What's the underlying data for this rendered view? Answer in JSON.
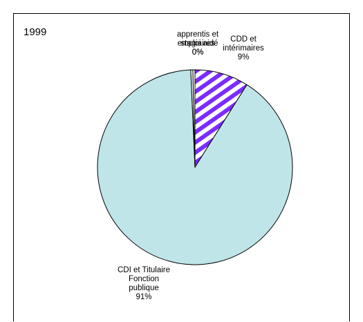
{
  "chart_data": {
    "type": "pie",
    "title": "1999",
    "slices": [
      {
        "key": "cdd",
        "label_lines": [
          "CDD et",
          "intérimaires"
        ],
        "value_label": "9%",
        "value": 9,
        "fill": "#ffffff",
        "hatch": "#7b2cff"
      },
      {
        "key": "cdi",
        "label_lines": [
          "CDI et Titulaire",
          "Fonction",
          "publique"
        ],
        "value_label": "91%",
        "value": 91,
        "fill": "#bfe5e8"
      },
      {
        "key": "apprentis",
        "label_lines": [
          "apprentis et",
          "stagiaires"
        ],
        "value_label": "0%",
        "value": 0.35,
        "fill": "#ffffff"
      },
      {
        "key": "emploi_aide",
        "label_lines": [
          "emploi aidé"
        ],
        "value_label": "0%",
        "value": 0.35,
        "fill": "#ffffff"
      }
    ],
    "start_angle_deg": 0,
    "direction": "clockwise",
    "legend": "none"
  }
}
